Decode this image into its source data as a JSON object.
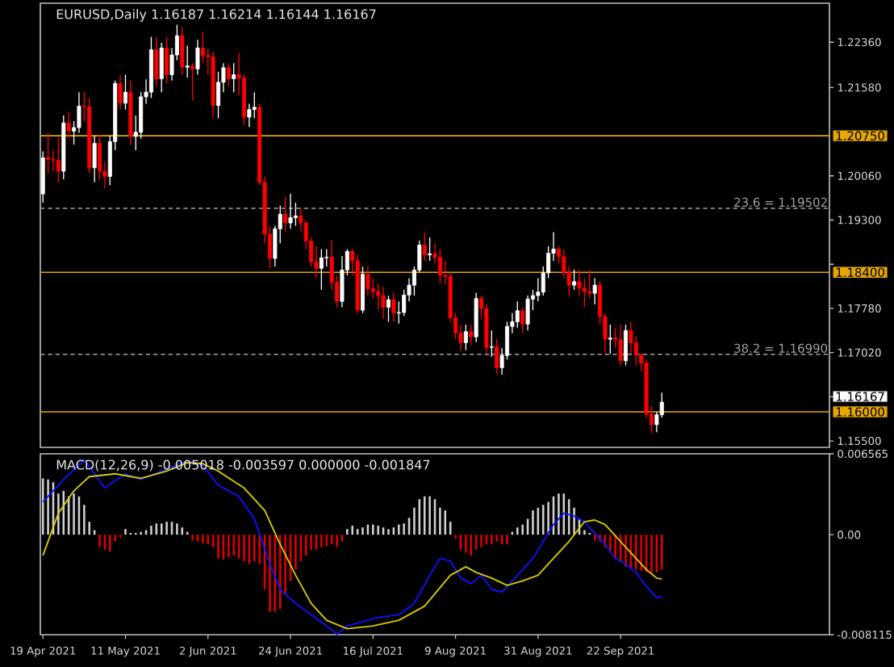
{
  "chart_data": [
    {
      "type": "candlestick",
      "title": "EURUSD,Daily  1.16187 1.16214 1.16144 1.16167",
      "categories": [
        null,
        null,
        null,
        null,
        null,
        null,
        null,
        null,
        null,
        null,
        null,
        null,
        null,
        null,
        null,
        null,
        null,
        null,
        null,
        null,
        null,
        null,
        null,
        null,
        null,
        null,
        null,
        null,
        null,
        null,
        null,
        null,
        null,
        null,
        null,
        null,
        null,
        null,
        null,
        null,
        null,
        null,
        null,
        null,
        null,
        null,
        null,
        null,
        null,
        null,
        null,
        null,
        null,
        null,
        null,
        null,
        null,
        null,
        null,
        null,
        null,
        null,
        null,
        null,
        null,
        null,
        null,
        null,
        null,
        null,
        null,
        null,
        null,
        null,
        null,
        null,
        null,
        null,
        null,
        null,
        null,
        null,
        null,
        null,
        null,
        null,
        null,
        null,
        null,
        null,
        null,
        null,
        null,
        null,
        null,
        null,
        null,
        null,
        null,
        null,
        null,
        null,
        null,
        null,
        null,
        null,
        null,
        null,
        null,
        null,
        null,
        null,
        null,
        null,
        null,
        null,
        null,
        null,
        null,
        null,
        null,
        null,
        null,
        null,
        null,
        null,
        null,
        null,
        null,
        null,
        null,
        null,
        null,
        null,
        null,
        null,
        null,
        null,
        null,
        null,
        null,
        null,
        null,
        null,
        null,
        null,
        null,
        null,
        null,
        null,
        null,
        null,
        null
      ],
      "tick_labels": "y",
      "ohlc": [
        [
          1.1975,
          1.2048,
          1.196,
          1.2037
        ],
        [
          1.2037,
          1.208,
          1.201,
          1.2034
        ],
        [
          1.2034,
          1.205,
          1.2015,
          1.2033
        ],
        [
          1.2033,
          1.2072,
          1.1995,
          1.2014
        ],
        [
          1.2014,
          1.211,
          1.2,
          1.2097
        ],
        [
          1.2097,
          1.2116,
          1.207,
          1.2083
        ],
        [
          1.2083,
          1.21,
          1.206,
          1.2089
        ],
        [
          1.2089,
          1.215,
          1.208,
          1.2126
        ],
        [
          1.2126,
          1.215,
          1.21,
          1.2125
        ],
        [
          1.2125,
          1.214,
          1.201,
          1.202
        ],
        [
          1.202,
          1.2075,
          1.1995,
          1.2062
        ],
        [
          1.2062,
          1.2077,
          1.1999,
          1.2014
        ],
        [
          1.2014,
          1.203,
          1.1985,
          1.2005
        ],
        [
          1.2005,
          1.2075,
          1.199,
          1.2065
        ],
        [
          1.2065,
          1.217,
          1.205,
          1.2165
        ],
        [
          1.2165,
          1.218,
          1.212,
          1.2131
        ],
        [
          1.2131,
          1.218,
          1.212,
          1.215
        ],
        [
          1.215,
          1.217,
          1.206,
          1.2074
        ],
        [
          1.2074,
          1.211,
          1.205,
          1.2081
        ],
        [
          1.2081,
          1.215,
          1.207,
          1.2142
        ],
        [
          1.2142,
          1.2172,
          1.213,
          1.215
        ],
        [
          1.215,
          1.2245,
          1.214,
          1.2223
        ],
        [
          1.2223,
          1.2245,
          1.216,
          1.2173
        ],
        [
          1.2173,
          1.2235,
          1.215,
          1.2226
        ],
        [
          1.2226,
          1.2245,
          1.2165,
          1.218
        ],
        [
          1.218,
          1.2226,
          1.217,
          1.2214
        ],
        [
          1.2214,
          1.2266,
          1.2205,
          1.2247
        ],
        [
          1.2247,
          1.2262,
          1.218,
          1.2193
        ],
        [
          1.2193,
          1.223,
          1.2175,
          1.2195
        ],
        [
          1.2195,
          1.22,
          1.2135,
          1.219
        ],
        [
          1.219,
          1.224,
          1.218,
          1.2226
        ],
        [
          1.2226,
          1.2254,
          1.22,
          1.2213
        ],
        [
          1.2213,
          1.2225,
          1.218,
          1.2211
        ],
        [
          1.2211,
          1.222,
          1.2105,
          1.2127
        ],
        [
          1.2127,
          1.2185,
          1.2105,
          1.2167
        ],
        [
          1.2167,
          1.22,
          1.215,
          1.2192
        ],
        [
          1.2192,
          1.22,
          1.216,
          1.2173
        ],
        [
          1.2173,
          1.22,
          1.215,
          1.218
        ],
        [
          1.218,
          1.2218,
          1.2145,
          1.2174
        ],
        [
          1.2174,
          1.218,
          1.2093,
          1.2107
        ],
        [
          1.2107,
          1.213,
          1.209,
          1.212
        ],
        [
          1.212,
          1.215,
          1.2105,
          1.2124
        ],
        [
          1.2124,
          1.213,
          1.199,
          1.1995
        ],
        [
          1.1995,
          1.2005,
          1.189,
          1.1906
        ],
        [
          1.1906,
          1.192,
          1.1847,
          1.1864
        ],
        [
          1.1864,
          1.192,
          1.185,
          1.1915
        ],
        [
          1.1915,
          1.1955,
          1.189,
          1.194
        ],
        [
          1.194,
          1.197,
          1.191,
          1.1925
        ],
        [
          1.1925,
          1.1975,
          1.1915,
          1.1934
        ],
        [
          1.1934,
          1.196,
          1.192,
          1.1937
        ],
        [
          1.1937,
          1.195,
          1.191,
          1.1925
        ],
        [
          1.1925,
          1.193,
          1.188,
          1.1894
        ],
        [
          1.1894,
          1.19,
          1.185,
          1.1858
        ],
        [
          1.1858,
          1.1885,
          1.183,
          1.1847
        ],
        [
          1.1847,
          1.188,
          1.181,
          1.1865
        ],
        [
          1.1865,
          1.188,
          1.185,
          1.1866
        ],
        [
          1.1866,
          1.1895,
          1.181,
          1.1823
        ],
        [
          1.1823,
          1.1835,
          1.178,
          1.179
        ],
        [
          1.179,
          1.1868,
          1.178,
          1.1844
        ],
        [
          1.1844,
          1.188,
          1.1835,
          1.1876
        ],
        [
          1.1876,
          1.188,
          1.1835,
          1.186
        ],
        [
          1.186,
          1.187,
          1.177,
          1.1775
        ],
        [
          1.1775,
          1.185,
          1.177,
          1.1837
        ],
        [
          1.1837,
          1.185,
          1.18,
          1.1812
        ],
        [
          1.1812,
          1.183,
          1.1795,
          1.1807
        ],
        [
          1.1807,
          1.182,
          1.1775,
          1.18
        ],
        [
          1.18,
          1.1815,
          1.176,
          1.178
        ],
        [
          1.178,
          1.18,
          1.1755,
          1.1793
        ],
        [
          1.1793,
          1.1805,
          1.1755,
          1.177
        ],
        [
          1.177,
          1.179,
          1.1752,
          1.1771
        ],
        [
          1.1771,
          1.181,
          1.1765,
          1.1801
        ],
        [
          1.1801,
          1.183,
          1.179,
          1.1818
        ],
        [
          1.1818,
          1.185,
          1.18,
          1.1844
        ],
        [
          1.1844,
          1.1895,
          1.184,
          1.1887
        ],
        [
          1.1887,
          1.1909,
          1.186,
          1.187
        ],
        [
          1.187,
          1.19,
          1.186,
          1.1872
        ],
        [
          1.1872,
          1.189,
          1.1855,
          1.1866
        ],
        [
          1.1866,
          1.188,
          1.182,
          1.1835
        ],
        [
          1.1835,
          1.186,
          1.182,
          1.1833
        ],
        [
          1.1833,
          1.184,
          1.1755,
          1.1762
        ],
        [
          1.1762,
          1.177,
          1.1725,
          1.1736
        ],
        [
          1.1736,
          1.175,
          1.1705,
          1.1719
        ],
        [
          1.1719,
          1.175,
          1.1706,
          1.1738
        ],
        [
          1.1738,
          1.175,
          1.1715,
          1.1729
        ],
        [
          1.1729,
          1.1805,
          1.172,
          1.1795
        ],
        [
          1.1795,
          1.18,
          1.176,
          1.1778
        ],
        [
          1.1778,
          1.1785,
          1.17,
          1.1711
        ],
        [
          1.1711,
          1.174,
          1.1695,
          1.1712
        ],
        [
          1.1712,
          1.1725,
          1.1665,
          1.1676
        ],
        [
          1.1676,
          1.171,
          1.1664,
          1.1697
        ],
        [
          1.1697,
          1.1755,
          1.169,
          1.1747
        ],
        [
          1.1747,
          1.177,
          1.1735,
          1.1755
        ],
        [
          1.1755,
          1.179,
          1.1745,
          1.1774
        ],
        [
          1.1774,
          1.178,
          1.1735,
          1.1751
        ],
        [
          1.1751,
          1.18,
          1.174,
          1.1794
        ],
        [
          1.1794,
          1.181,
          1.1775,
          1.18
        ],
        [
          1.18,
          1.183,
          1.179,
          1.1806
        ],
        [
          1.1806,
          1.185,
          1.18,
          1.1839
        ],
        [
          1.1839,
          1.1885,
          1.183,
          1.1873
        ],
        [
          1.1873,
          1.1909,
          1.186,
          1.188
        ],
        [
          1.188,
          1.1885,
          1.1855,
          1.1867
        ],
        [
          1.1867,
          1.188,
          1.183,
          1.184
        ],
        [
          1.184,
          1.185,
          1.18,
          1.1818
        ],
        [
          1.1818,
          1.1845,
          1.181,
          1.1824
        ],
        [
          1.1824,
          1.1845,
          1.18,
          1.1813
        ],
        [
          1.1813,
          1.183,
          1.178,
          1.1807
        ],
        [
          1.1807,
          1.1845,
          1.1795,
          1.1804
        ],
        [
          1.1804,
          1.183,
          1.1785,
          1.1818
        ],
        [
          1.1818,
          1.1825,
          1.175,
          1.1764
        ],
        [
          1.1764,
          1.177,
          1.17,
          1.1725
        ],
        [
          1.1725,
          1.175,
          1.17,
          1.1727
        ],
        [
          1.1727,
          1.1745,
          1.171,
          1.1724
        ],
        [
          1.1724,
          1.175,
          1.168,
          1.1688
        ],
        [
          1.1688,
          1.175,
          1.168,
          1.174
        ],
        [
          1.174,
          1.1755,
          1.17,
          1.1719
        ],
        [
          1.1719,
          1.173,
          1.168,
          1.1698
        ],
        [
          1.1698,
          1.17,
          1.167,
          1.1684
        ],
        [
          1.1684,
          1.169,
          1.159,
          1.1596
        ],
        [
          1.1596,
          1.161,
          1.1563,
          1.1578
        ],
        [
          1.1578,
          1.16,
          1.1565,
          1.1595
        ],
        [
          1.1595,
          1.1633,
          1.159,
          1.16167
        ],
        null,
        null,
        null,
        null,
        null,
        null,
        null,
        null,
        null,
        null,
        null,
        null,
        null,
        null,
        null,
        null,
        null,
        null,
        null,
        null,
        null,
        null,
        null,
        null,
        null,
        null,
        null,
        null,
        null,
        null,
        null,
        null
      ],
      "colors": [
        "#ffffff",
        "#ff0000",
        "#ff0000",
        "#ff0000",
        "#ffffff",
        "#ff0000",
        "#ffffff",
        "#ffffff",
        "#ff0000",
        "#ff0000",
        "#ffffff",
        "#ff0000",
        "#ff0000",
        "#ffffff",
        "#ffffff",
        "#ff0000",
        "#ffffff",
        "#ff0000",
        "#ffffff",
        "#ffffff",
        "#ffffff",
        "#ffffff",
        "#ff0000",
        "#ffffff",
        "#ff0000",
        "#ffffff",
        "#ffffff",
        "#ff0000",
        "#ffffff",
        "#ff0000",
        "#ffffff",
        "#ff0000",
        "#ff0000",
        "#ff0000",
        "#ffffff",
        "#ffffff",
        "#ff0000",
        "#ffffff",
        "#ff0000",
        "#ff0000",
        "#ffffff",
        "#ffffff",
        "#ff0000",
        "#ff0000",
        "#ff0000",
        "#ffffff",
        "#ffffff",
        "#ff0000",
        "#ffffff",
        "#ffffff",
        "#ff0000",
        "#ff0000",
        "#ff0000",
        "#ff0000",
        "#ffffff",
        "#ffffff",
        "#ff0000",
        "#ff0000",
        "#ffffff",
        "#ffffff",
        "#ff0000",
        "#ff0000",
        "#ffffff",
        "#ff0000",
        "#ff0000",
        "#ff0000",
        "#ff0000",
        "#ffffff",
        "#ff0000",
        "#ffffff",
        "#ffffff",
        "#ffffff",
        "#ffffff",
        "#ffffff",
        "#ff0000",
        "#ffffff",
        "#ff0000",
        "#ff0000",
        "#ff0000",
        "#ff0000",
        "#ff0000",
        "#ff0000",
        "#ffffff",
        "#ff0000",
        "#ffffff",
        "#ff0000",
        "#ff0000",
        "#ffffff",
        "#ff0000",
        "#ffffff",
        "#ffffff",
        "#ffffff",
        "#ffffff",
        "#ff0000",
        "#ffffff",
        "#ffffff",
        "#ffffff",
        "#ffffff",
        "#ffffff",
        "#ffffff",
        "#ff0000",
        "#ff0000",
        "#ff0000",
        "#ffffff",
        "#ff0000",
        "#ff0000",
        "#ff0000",
        "#ffffff",
        "#ff0000",
        "#ff0000",
        "#ffffff",
        "#ff0000",
        "#ff0000",
        "#ffffff",
        "#ff0000",
        "#ff0000",
        "#ff0000",
        "#ff0000",
        "#ff0000",
        "#ffffff",
        "#ffffff",
        null,
        null,
        null,
        null,
        null,
        null,
        null,
        null,
        null,
        null,
        null,
        null,
        null,
        null,
        null,
        null,
        null,
        null,
        null,
        null,
        null,
        null,
        null,
        null,
        null,
        null,
        null,
        null,
        null,
        null,
        null,
        null
      ],
      "ylim": [
        1.1539,
        1.2303
      ],
      "yticks": [
        {
          "value": 1.155,
          "label": "1.15500"
        },
        {
          "value": 1.1626,
          "label": null
        },
        {
          "value": 1.1702,
          "label": "1.17020"
        },
        {
          "value": 1.1778,
          "label": "1.17780"
        },
        {
          "value": 1.1854,
          "label": null
        },
        {
          "value": 1.193,
          "label": "1.19300"
        },
        {
          "value": 1.2006,
          "label": "1.20060"
        },
        {
          "value": 1.2158,
          "label": "1.21580"
        },
        {
          "value": 1.2236,
          "label": "1.22360"
        }
      ],
      "ref_lines": [
        {
          "axis": "y",
          "value": 1.2075,
          "label": "1.20750",
          "color": "#e6a800",
          "line_style": "solid"
        },
        {
          "axis": "y",
          "value": 1.184,
          "label": "1.18400",
          "color": "#e6a800",
          "line_style": "solid"
        },
        {
          "axis": "y",
          "value": 1.16,
          "label": "1.16000",
          "color": "#e6a800",
          "line_style": "solid"
        },
        {
          "axis": "y",
          "value": 1.19502,
          "label": "23.6 = 1.19502",
          "color": "#a0a0a0",
          "line_style": "dashed"
        },
        {
          "axis": "y",
          "value": 1.1699,
          "label": "38.2 = 1.16990",
          "color": "#a0a0a0",
          "line_style": "dashed"
        }
      ],
      "annotations": [
        "1.16167"
      ]
    },
    {
      "type": "bar",
      "title": "MACD(12,26,9) -0.005018 -0.003597 0.000000 -0.001847",
      "categories": [
        "19 Apr 2021",
        null,
        null,
        null,
        null,
        null,
        null,
        null,
        null,
        null,
        null,
        null,
        null,
        null,
        null,
        null,
        "11 May 2021",
        null,
        null,
        null,
        null,
        null,
        null,
        null,
        null,
        null,
        null,
        null,
        null,
        null,
        null,
        null,
        "2 Jun 2021",
        null,
        null,
        null,
        null,
        null,
        null,
        null,
        null,
        null,
        null,
        null,
        null,
        null,
        null,
        null,
        "24 Jun 2021",
        null,
        null,
        null,
        null,
        null,
        null,
        null,
        null,
        null,
        null,
        null,
        null,
        null,
        null,
        null,
        "16 Jul 2021",
        null,
        null,
        null,
        null,
        null,
        null,
        null,
        null,
        null,
        null,
        null,
        null,
        null,
        null,
        null,
        "9 Aug 2021",
        null,
        null,
        null,
        null,
        null,
        null,
        null,
        null,
        null,
        null,
        null,
        null,
        null,
        null,
        null,
        "31 Aug 2021",
        null,
        null,
        null,
        null,
        null,
        null,
        null,
        null,
        null,
        null,
        null,
        null,
        null,
        null,
        null,
        "22 Sep 2021",
        null,
        null,
        null,
        null,
        null,
        null,
        null,
        null,
        null,
        null,
        null,
        null,
        null,
        null,
        null,
        null,
        null,
        null,
        null,
        null,
        null,
        null,
        null,
        null,
        null,
        null,
        null,
        null,
        null,
        null,
        null,
        null,
        null,
        null,
        null,
        null,
        null,
        null,
        null,
        null
      ],
      "series": [
        {
          "type": "bar",
          "values": [
            0.00457,
            0.00448,
            0.00425,
            0.00334,
            0.00356,
            0.00311,
            0.00334,
            0.00311,
            0.00242,
            0.00105,
            0.00037,
            -0.00101,
            -0.00123,
            -0.00137,
            -0.00055,
            -0.00023,
            0.00046,
            0.00014,
            0.00014,
            0.00023,
            0.00037,
            0.00073,
            0.00091,
            0.00091,
            0.00105,
            0.00105,
            0.00091,
            0.00059,
            0.00023,
            -0.00046,
            -0.00055,
            -0.00069,
            -0.00078,
            -0.00101,
            -0.00192,
            -0.00201,
            -0.00183,
            -0.00169,
            -0.00192,
            -0.00215,
            -0.00238,
            -0.00215,
            -0.00238,
            -0.00443,
            -0.00626,
            -0.00626,
            -0.00603,
            -0.00489,
            -0.00375,
            -0.00283,
            -0.00215,
            -0.00169,
            -0.00123,
            -0.00123,
            -0.00101,
            -0.00091,
            -0.00078,
            -0.00101,
            -0.00055,
            0.00046,
            0.00073,
            0.00046,
            0.00059,
            0.00082,
            0.00082,
            0.00073,
            0.00059,
            0.00046,
            0.00059,
            0.00082,
            0.00091,
            0.00137,
            0.00219,
            0.00288,
            0.00311,
            0.00311,
            0.00288,
            0.00219,
            0.00197,
            0.00105,
            -0.00032,
            -0.00123,
            -0.00146,
            -0.00169,
            -0.00123,
            -0.00101,
            -0.00078,
            -0.00078,
            -0.00055,
            -0.00078,
            -0.00078,
            0.00023,
            0.00059,
            0.00082,
            0.00128,
            0.00197,
            0.00219,
            0.00242,
            0.00265,
            0.00311,
            0.00334,
            0.00334,
            0.00288,
            0.00219,
            0.00128,
            0.00037,
            0.00014,
            -0.00046,
            -0.00055,
            -0.00101,
            -0.00146,
            -0.00192,
            -0.00215,
            -0.0026,
            -0.00274,
            -0.00283,
            -0.00292,
            -0.00306,
            -0.0032,
            -0.00306,
            -0.00283,
            null,
            null,
            null,
            null,
            null,
            null,
            null,
            null,
            null,
            null,
            null,
            null,
            null,
            null,
            null,
            null,
            null,
            null,
            null,
            null,
            null,
            null,
            null,
            null,
            null,
            null,
            null,
            null,
            null,
            null,
            null,
            null
          ],
          "colors": [
            "#d0d0d0",
            "#d0d0d0",
            "#d0d0d0",
            "#d0d0d0",
            "#d0d0d0",
            "#d0d0d0",
            "#d0d0d0",
            "#d0d0d0",
            "#d0d0d0",
            "#d0d0d0",
            "#d0d0d0",
            "#e00000",
            "#e00000",
            "#e00000",
            "#e00000",
            "#e00000",
            "#d0d0d0",
            "#d0d0d0",
            "#d0d0d0",
            "#d0d0d0",
            "#d0d0d0",
            "#d0d0d0",
            "#d0d0d0",
            "#d0d0d0",
            "#d0d0d0",
            "#d0d0d0",
            "#d0d0d0",
            "#d0d0d0",
            "#d0d0d0",
            "#e00000",
            "#e00000",
            "#e00000",
            "#e00000",
            "#e00000",
            "#e00000",
            "#e00000",
            "#e00000",
            "#e00000",
            "#e00000",
            "#e00000",
            "#e00000",
            "#e00000",
            "#e00000",
            "#e00000",
            "#e00000",
            "#e00000",
            "#e00000",
            "#e00000",
            "#e00000",
            "#e00000",
            "#e00000",
            "#e00000",
            "#e00000",
            "#e00000",
            "#e00000",
            "#e00000",
            "#e00000",
            "#e00000",
            "#e00000",
            "#d0d0d0",
            "#d0d0d0",
            "#d0d0d0",
            "#d0d0d0",
            "#d0d0d0",
            "#d0d0d0",
            "#d0d0d0",
            "#d0d0d0",
            "#d0d0d0",
            "#d0d0d0",
            "#d0d0d0",
            "#d0d0d0",
            "#d0d0d0",
            "#d0d0d0",
            "#d0d0d0",
            "#d0d0d0",
            "#d0d0d0",
            "#d0d0d0",
            "#d0d0d0",
            "#d0d0d0",
            "#d0d0d0",
            "#e00000",
            "#e00000",
            "#e00000",
            "#e00000",
            "#e00000",
            "#e00000",
            "#e00000",
            "#e00000",
            "#e00000",
            "#e00000",
            "#e00000",
            "#d0d0d0",
            "#d0d0d0",
            "#d0d0d0",
            "#d0d0d0",
            "#d0d0d0",
            "#d0d0d0",
            "#d0d0d0",
            "#d0d0d0",
            "#d0d0d0",
            "#d0d0d0",
            "#d0d0d0",
            "#d0d0d0",
            "#d0d0d0",
            "#d0d0d0",
            "#d0d0d0",
            "#d0d0d0",
            "#e00000",
            "#e00000",
            "#e00000",
            "#e00000",
            "#e00000",
            "#e00000",
            "#e00000",
            "#e00000",
            "#e00000",
            "#e00000",
            "#e00000",
            "#e00000",
            "#e00000",
            "#e00000",
            null,
            null,
            null,
            null,
            null,
            null,
            null,
            null,
            null,
            null,
            null,
            null,
            null,
            null,
            null,
            null,
            null,
            null,
            null,
            null,
            null,
            null,
            null,
            null,
            null,
            null,
            null,
            null,
            null,
            null,
            null,
            null
          ]
        },
        {
          "type": "line",
          "color": "#1010ff",
          "values": [
            0.00265,
            null,
            null,
            null,
            0.00448,
            null,
            null,
            null,
            0.00608,
            null,
            null,
            null,
            0.00379,
            null,
            null,
            null,
            0.00494,
            null,
            null,
            0.00448,
            null,
            null,
            null,
            0.00516,
            null,
            null,
            null,
            0.00585,
            null,
            0.00594,
            null,
            0.00562,
            null,
            null,
            0.00402,
            null,
            null,
            null,
            0.00311,
            null,
            null,
            0.00128,
            null,
            null,
            -0.00238,
            null,
            -0.00443,
            null,
            null,
            -0.00558,
            null,
            null,
            -0.00649,
            null,
            null,
            -0.0074,
            null,
            -0.00809,
            null,
            -0.0074,
            null,
            -0.00717,
            null,
            null,
            null,
            -0.00672,
            null,
            null,
            null,
            -0.00649,
            null,
            null,
            -0.00558,
            null,
            null,
            -0.00329,
            null,
            -0.00192,
            null,
            -0.00215,
            null,
            -0.00352,
            null,
            -0.00398,
            null,
            -0.00329,
            null,
            -0.00443,
            null,
            -0.00466,
            null,
            -0.00375,
            null,
            -0.00283,
            null,
            -0.00192,
            null,
            -0.00055,
            null,
            0.00082,
            null,
            0.00174,
            null,
            0.00151,
            null,
            0.00105,
            null,
            0.00014,
            null,
            -0.00078,
            null,
            -0.00192,
            null,
            -0.00238,
            null,
            -0.00306,
            null,
            -0.0042,
            null,
            -0.00512,
            -0.00502,
            null,
            null,
            null,
            null,
            null,
            null,
            null,
            null,
            null,
            null,
            null,
            null,
            null,
            null,
            null,
            null,
            null,
            null,
            null,
            null,
            null,
            null,
            null,
            null,
            null,
            null,
            null,
            null,
            null,
            null,
            null,
            null
          ]
        },
        {
          "type": "line",
          "color": "#d8cc00",
          "values": [
            -0.00169,
            null,
            null,
            0.00174,
            null,
            null,
            0.00356,
            null,
            null,
            0.00471,
            null,
            null,
            null,
            null,
            0.00494,
            null,
            null,
            null,
            null,
            0.00457,
            null,
            null,
            null,
            null,
            0.00516,
            null,
            null,
            null,
            0.00585,
            null,
            null,
            0.00576,
            null,
            null,
            0.00516,
            null,
            null,
            null,
            null,
            0.00379,
            null,
            null,
            null,
            0.00197,
            null,
            null,
            -0.00078,
            null,
            null,
            -0.00329,
            null,
            null,
            -0.00557,
            null,
            null,
            -0.00695,
            null,
            null,
            null,
            -0.00763,
            null,
            null,
            null,
            null,
            -0.0074,
            null,
            null,
            null,
            null,
            -0.00695,
            null,
            null,
            null,
            null,
            -0.0058,
            null,
            null,
            null,
            null,
            -0.00329,
            null,
            null,
            -0.0026,
            null,
            -0.00306,
            null,
            null,
            -0.00352,
            null,
            null,
            -0.00411,
            null,
            null,
            -0.00375,
            null,
            null,
            -0.00329,
            null,
            null,
            -0.00192,
            null,
            null,
            -0.00055,
            null,
            null,
            0.00105,
            null,
            0.00119,
            null,
            0.00082,
            null,
            -9e-05,
            null,
            -0.00101,
            null,
            -0.00192,
            null,
            -0.00283,
            null,
            -0.00352,
            -0.0036,
            null,
            null,
            null,
            null,
            null,
            null,
            null,
            null,
            null,
            null,
            null,
            null,
            null,
            null,
            null,
            null,
            null,
            null,
            null,
            null,
            null,
            null,
            null,
            null,
            null,
            null,
            null,
            null,
            null,
            null,
            null,
            null
          ]
        }
      ],
      "ylim": [
        -0.008115,
        0.006565
      ],
      "yticks": [
        -0.008115,
        {
          "value": 0,
          "label": "0.00"
        },
        0.006565
      ]
    }
  ]
}
